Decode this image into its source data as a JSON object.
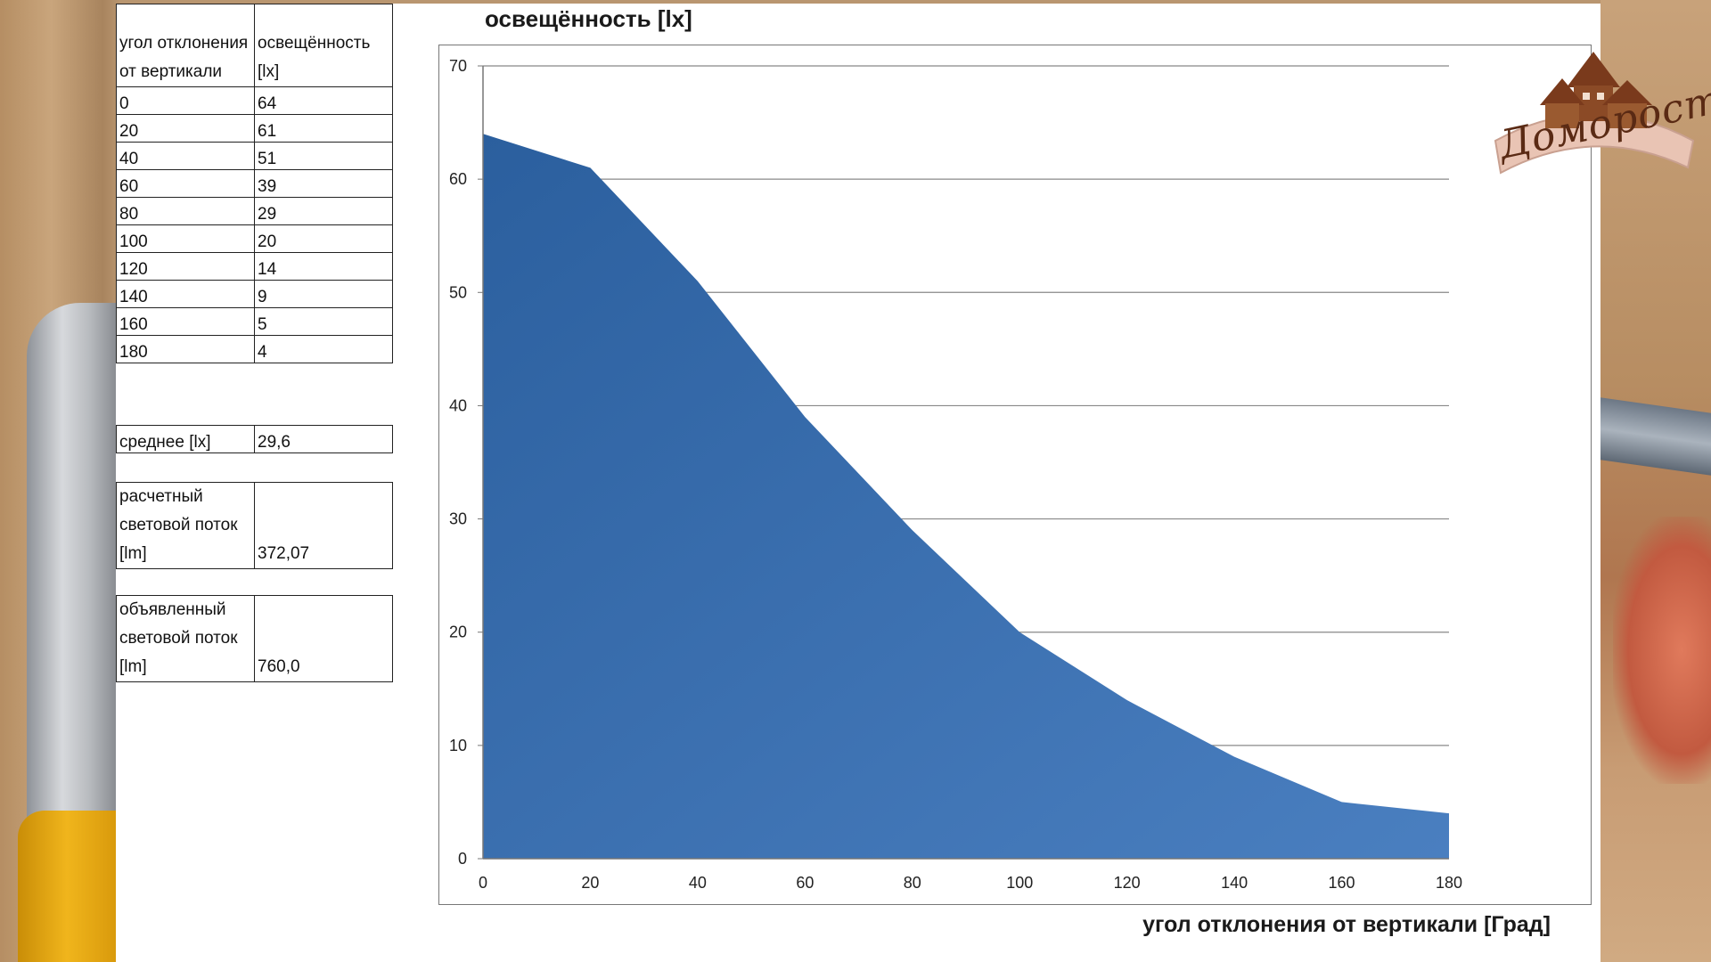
{
  "table": {
    "header_col1": "угол отклонения от вертикали",
    "header_col2": "освещённость [lx]",
    "rows": [
      {
        "angle": "0",
        "lux": "64"
      },
      {
        "angle": "20",
        "lux": "61"
      },
      {
        "angle": "40",
        "lux": "51"
      },
      {
        "angle": "60",
        "lux": "39"
      },
      {
        "angle": "80",
        "lux": "29"
      },
      {
        "angle": "100",
        "lux": "20"
      },
      {
        "angle": "120",
        "lux": "14"
      },
      {
        "angle": "140",
        "lux": "9"
      },
      {
        "angle": "160",
        "lux": "5"
      },
      {
        "angle": "180",
        "lux": "4"
      }
    ]
  },
  "summary": {
    "avg_label": "среднее [lx]",
    "avg_value": "29,6",
    "calc_label": "расчетный световой поток [lm]",
    "calc_value": "372,07",
    "decl_label": "объявленный световой поток [lm]",
    "decl_value": "760,0"
  },
  "logo": {
    "text": "Домоpост"
  },
  "chart_data": {
    "type": "area",
    "title": "освещённость [lx]",
    "xlabel": "угол отклонения от вертикали [Град]",
    "ylabel": "",
    "x": [
      0,
      20,
      40,
      60,
      80,
      100,
      120,
      140,
      160,
      180
    ],
    "y": [
      64,
      61,
      51,
      39,
      29,
      20,
      14,
      9,
      5,
      4
    ],
    "xlim": [
      0,
      180
    ],
    "ylim": [
      0,
      70
    ],
    "xticks": [
      0,
      20,
      40,
      60,
      80,
      100,
      120,
      140,
      160,
      180
    ],
    "yticks": [
      0,
      10,
      20,
      30,
      40,
      50,
      60,
      70
    ],
    "grid": "horizontal",
    "fill_color_top": "#2b5f9e",
    "fill_color_bottom": "#4a7fc0"
  }
}
